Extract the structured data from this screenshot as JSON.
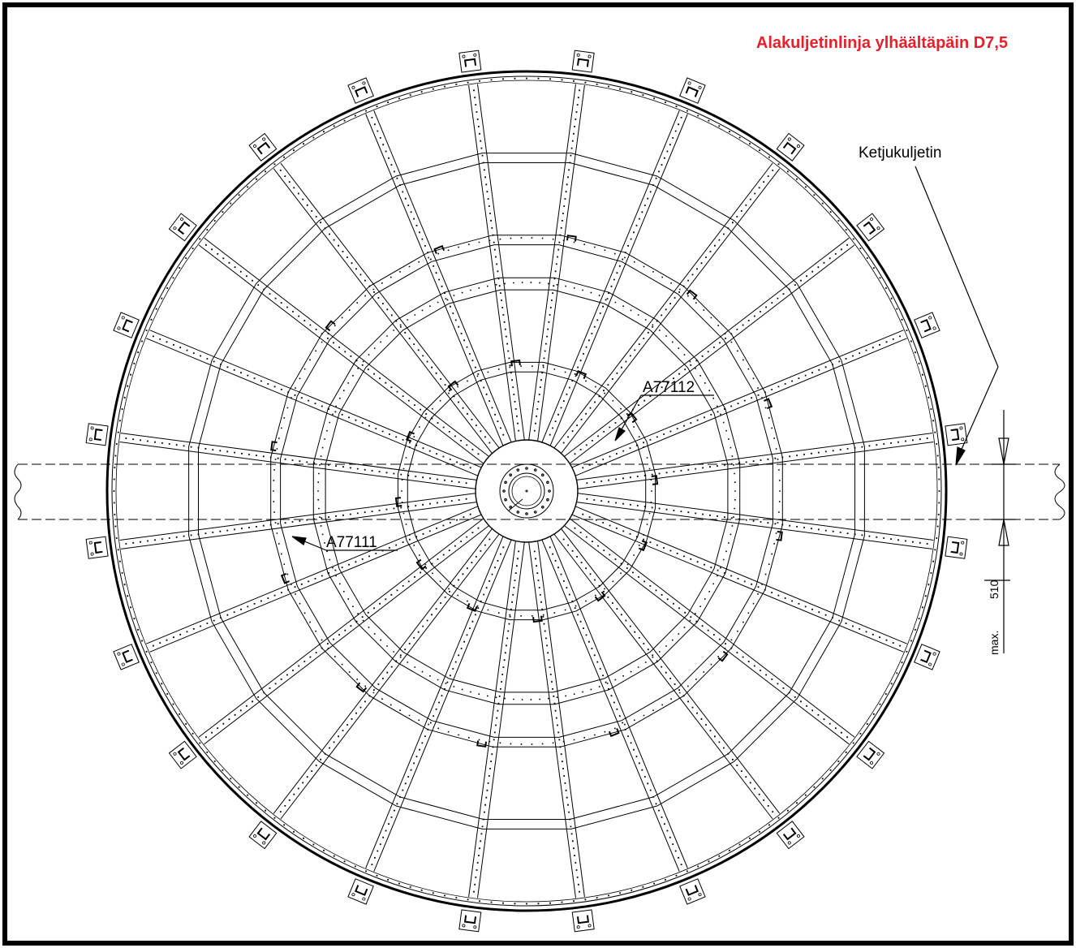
{
  "title": "Alakuljetinlinja ylhäältäpäin D7,5",
  "title_color": "#e8202a",
  "labels": {
    "conveyor": "Ketjukuljetin",
    "part_upper": "A77112",
    "part_lower": "A77111",
    "dimension_prefix": "max.",
    "dimension_value": "510"
  },
  "colors": {
    "line": "#000000",
    "background": "#ffffff"
  }
}
